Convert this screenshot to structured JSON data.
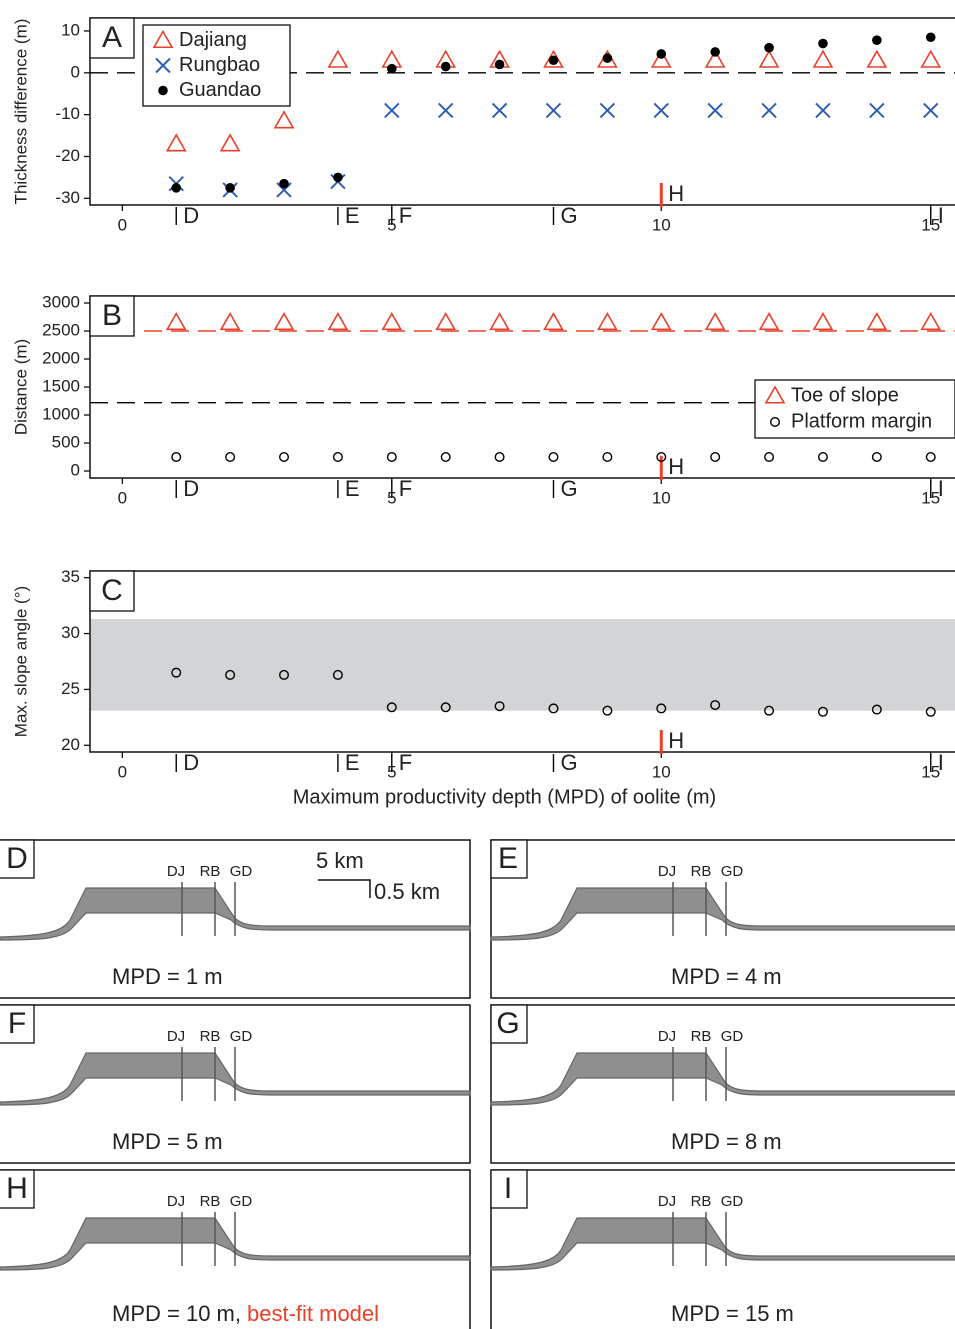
{
  "chart_data": [
    {
      "type": "scatter",
      "panel": "A",
      "ylabel": "Thickness difference (m)",
      "x": [
        1,
        2,
        3,
        4,
        5,
        6,
        7,
        8,
        9,
        10,
        11,
        12,
        13,
        14,
        15
      ],
      "xlim": [
        -0.6,
        15.45
      ],
      "ylim": [
        -31.6,
        13.1
      ],
      "xticks": [
        0,
        5,
        10,
        15
      ],
      "yticks": [
        10,
        0,
        -10,
        -20,
        -30
      ],
      "series": [
        {
          "name": "Dajiang",
          "color": "#e8402a",
          "marker": "triangle",
          "values": [
            -17,
            -17,
            -11.5,
            3,
            3,
            3,
            3,
            3,
            3,
            3,
            3,
            3,
            3,
            3,
            3
          ]
        },
        {
          "name": "Rungbao",
          "color": "#2f5fb3",
          "marker": "x",
          "values": [
            -26.5,
            -28,
            -28,
            -26,
            -9,
            -9,
            -9,
            -9,
            -9,
            -9,
            -9,
            -9,
            -9,
            -9,
            -9
          ]
        },
        {
          "name": "Guandao",
          "color": "#000000",
          "marker": "dot",
          "values": [
            -27.5,
            -27.5,
            -26.5,
            -25,
            1,
            1.5,
            2,
            3,
            3.5,
            4.5,
            5,
            6,
            7,
            7.8,
            8.5
          ]
        }
      ],
      "hlines": [
        {
          "y": 0,
          "color": "#000000"
        }
      ],
      "legend": "top-left",
      "section_markers": [
        {
          "label": "D",
          "x": 1,
          "color": "#000000"
        },
        {
          "label": "E",
          "x": 4,
          "color": "#000000"
        },
        {
          "label": "F",
          "x": 5,
          "color": "#000000"
        },
        {
          "label": "G",
          "x": 8,
          "color": "#000000"
        },
        {
          "label": "H",
          "x": 10,
          "color": "#e8402a"
        },
        {
          "label": "I",
          "x": 15,
          "color": "#000000"
        }
      ]
    },
    {
      "type": "scatter",
      "panel": "B",
      "ylabel": "Distance (m)",
      "x": [
        1,
        2,
        3,
        4,
        5,
        6,
        7,
        8,
        9,
        10,
        11,
        12,
        13,
        14,
        15
      ],
      "xlim": [
        -0.6,
        15.45
      ],
      "ylim": [
        -125,
        3125
      ],
      "xticks": [
        0,
        5,
        10,
        15
      ],
      "yticks": [
        0,
        500,
        1000,
        1500,
        2000,
        2500,
        3000
      ],
      "series": [
        {
          "name": "Toe of slope",
          "color": "#e8402a",
          "marker": "triangle",
          "values": [
            2650,
            2650,
            2650,
            2650,
            2650,
            2650,
            2650,
            2650,
            2650,
            2650,
            2650,
            2650,
            2650,
            2650,
            2650
          ]
        },
        {
          "name": "Platform margin",
          "color": "#000000",
          "marker": "circle",
          "values": [
            250,
            250,
            250,
            250,
            250,
            250,
            250,
            250,
            250,
            250,
            250,
            250,
            250,
            250,
            250
          ]
        }
      ],
      "hlines": [
        {
          "y": 2500,
          "color": "#e8402a"
        },
        {
          "y": 1220,
          "color": "#000000"
        }
      ],
      "legend": "right",
      "section_markers": [
        {
          "label": "D",
          "x": 1,
          "color": "#000000"
        },
        {
          "label": "E",
          "x": 4,
          "color": "#000000"
        },
        {
          "label": "F",
          "x": 5,
          "color": "#000000"
        },
        {
          "label": "G",
          "x": 8,
          "color": "#000000"
        },
        {
          "label": "H",
          "x": 10,
          "color": "#e8402a"
        },
        {
          "label": "I",
          "x": 15,
          "color": "#000000"
        }
      ]
    },
    {
      "type": "scatter",
      "panel": "C",
      "ylabel": "Max. slope angle (°)",
      "xlabel": "Maximum productivity depth (MPD) of oolite (m)",
      "x": [
        1,
        2,
        3,
        4,
        5,
        6,
        7,
        8,
        9,
        10,
        11,
        12,
        13,
        14,
        15
      ],
      "xlim": [
        -0.6,
        15.45
      ],
      "ylim": [
        19.4,
        35.6
      ],
      "xticks": [
        0,
        5,
        10,
        15
      ],
      "yticks": [
        20,
        25,
        30,
        35
      ],
      "shaded_range": [
        23.1,
        31.3
      ],
      "shaded_color": "#d3d4d6",
      "series": [
        {
          "color": "#000000",
          "marker": "circle",
          "values": [
            26.5,
            26.3,
            26.3,
            26.3,
            23.4,
            23.4,
            23.5,
            23.3,
            23.1,
            23.3,
            23.6,
            23.1,
            23.0,
            23.2,
            23.0
          ]
        }
      ],
      "section_markers": [
        {
          "label": "D",
          "x": 1,
          "color": "#000000"
        },
        {
          "label": "E",
          "x": 4,
          "color": "#000000"
        },
        {
          "label": "F",
          "x": 5,
          "color": "#000000"
        },
        {
          "label": "G",
          "x": 8,
          "color": "#000000"
        },
        {
          "label": "H",
          "x": 10,
          "color": "#e8402a"
        },
        {
          "label": "I",
          "x": 15,
          "color": "#000000"
        }
      ]
    }
  ],
  "model_panels": [
    {
      "letter": "D",
      "caption": "MPD = 1 m"
    },
    {
      "letter": "E",
      "caption": "MPD = 4 m"
    },
    {
      "letter": "F",
      "caption": "MPD = 5 m"
    },
    {
      "letter": "G",
      "caption": "MPD = 8 m"
    },
    {
      "letter": "H",
      "caption": "MPD = 10 m,",
      "caption_note": "best-fit model"
    },
    {
      "letter": "I",
      "caption": "MPD = 15 m"
    }
  ],
  "well_labels": [
    "DJ",
    "RB",
    "GD"
  ],
  "scale_bar": {
    "horizontal": "5 km",
    "vertical": "0.5 km"
  }
}
